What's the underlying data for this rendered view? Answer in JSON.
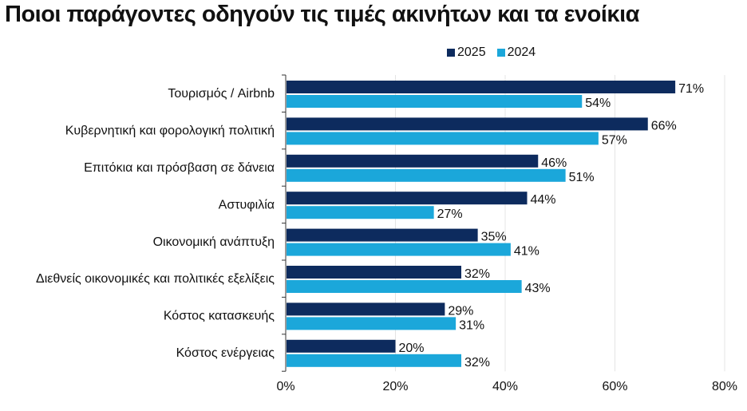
{
  "chart_data": {
    "type": "bar",
    "orientation": "horizontal",
    "title": "Ποιοι παράγοντες οδηγούν τις τιμές ακινήτων και τα ενοίκια",
    "categories": [
      "Τουρισμός / Airbnb",
      "Κυβερνητική και φορολογική πολιτική",
      "Επιτόκια και πρόσβαση σε δάνεια",
      "Αστυφιλία",
      "Οικονομική ανάπτυξη",
      "Διεθνείς οικονομικές και πολιτικές εξελίξεις",
      "Κόστος κατασκευής",
      "Κόστος ενέργειας"
    ],
    "series": [
      {
        "name": "2025",
        "color": "#0d2b5e",
        "values": [
          71,
          66,
          46,
          44,
          35,
          32,
          29,
          20
        ]
      },
      {
        "name": "2024",
        "color": "#1ba7da",
        "values": [
          54,
          57,
          51,
          27,
          41,
          43,
          31,
          32
        ]
      }
    ],
    "xlim": [
      0,
      80
    ],
    "xticks": [
      "0%",
      "20%",
      "40%",
      "60%",
      "80%"
    ],
    "value_suffix": "%",
    "legend": "top",
    "grid": true
  }
}
